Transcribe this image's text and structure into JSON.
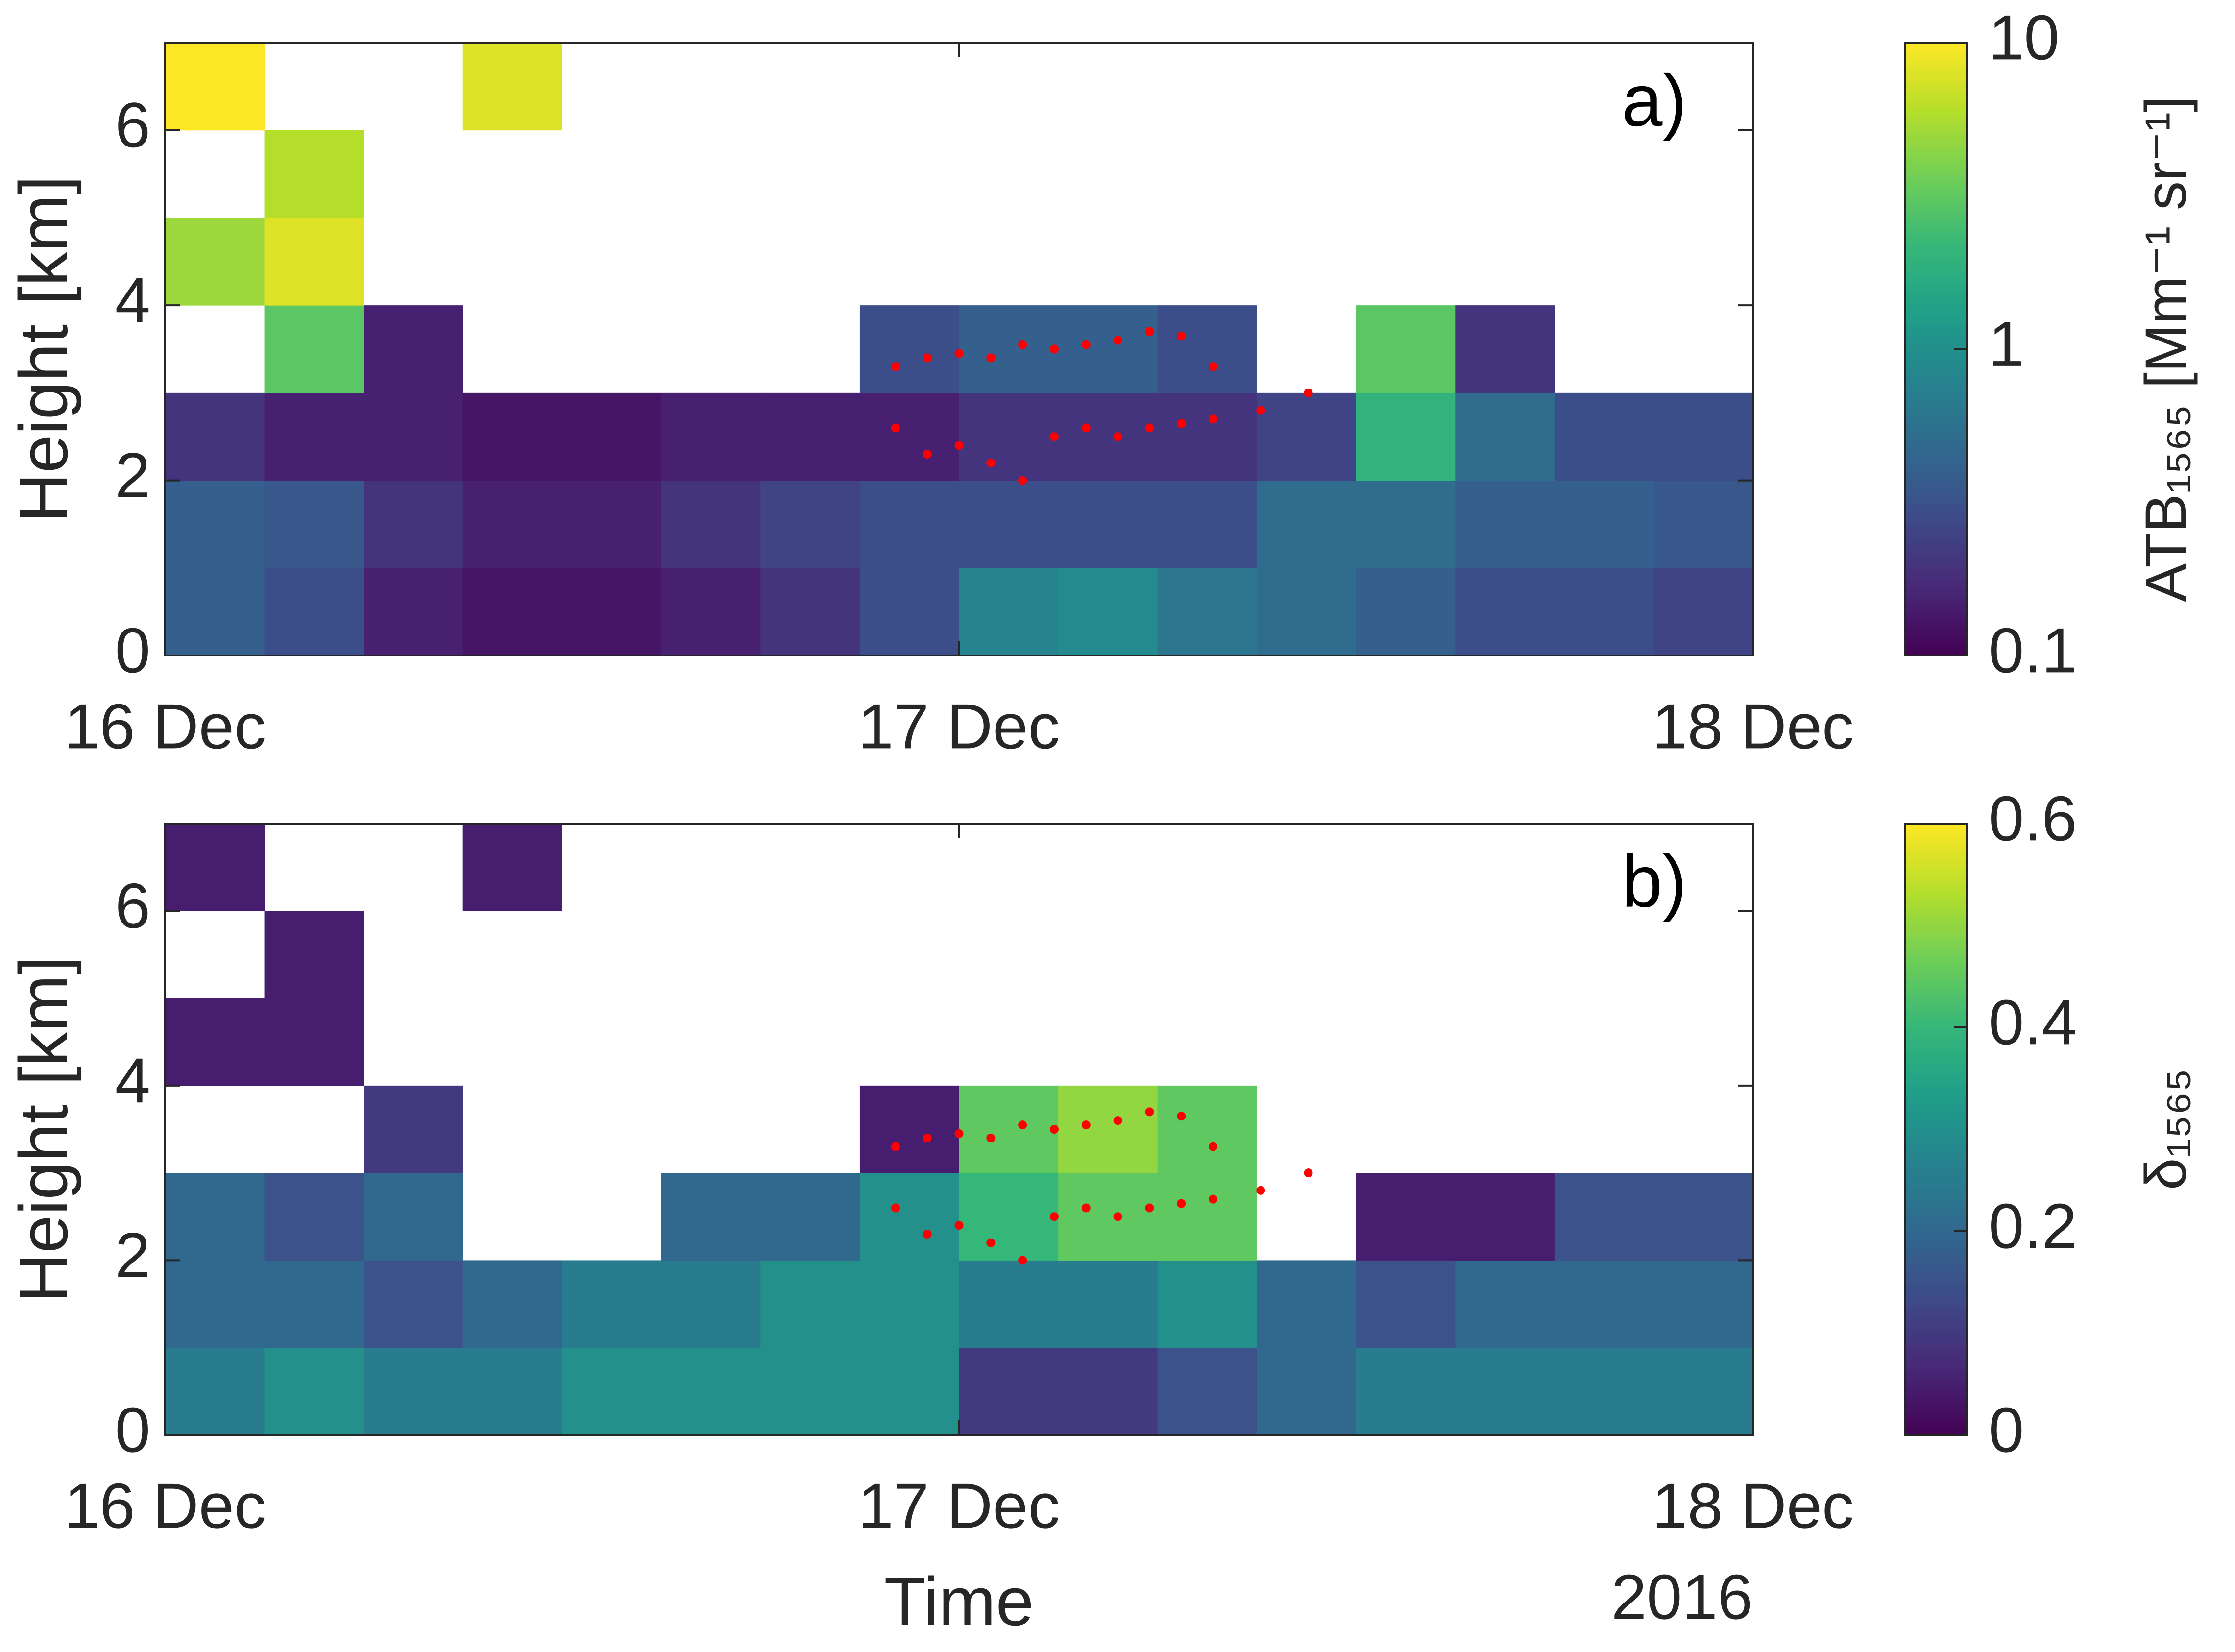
{
  "chart_data": [
    {
      "type": "heatmap",
      "panel_label": "a)",
      "ylabel": "Height [km]",
      "xlim": [
        0,
        2
      ],
      "xticks": [
        {
          "value": 0,
          "label": "16 Dec"
        },
        {
          "value": 1,
          "label": "17 Dec"
        },
        {
          "value": 2,
          "label": "18 Dec"
        }
      ],
      "ylim": [
        0,
        7
      ],
      "yticks": [
        0,
        2,
        4,
        6
      ],
      "z": [
        [
          0.4,
          0.3,
          0.15,
          0.13,
          0.13,
          0.15,
          0.2,
          0.3,
          0.8,
          0.9,
          0.6,
          0.5,
          0.4,
          0.3,
          0.3,
          0.25
        ],
        [
          0.4,
          0.35,
          0.2,
          0.15,
          0.15,
          0.2,
          0.25,
          0.3,
          0.3,
          0.3,
          0.3,
          0.5,
          0.5,
          0.4,
          0.4,
          0.35
        ],
        [
          0.2,
          0.15,
          0.15,
          0.13,
          0.13,
          0.15,
          0.15,
          0.15,
          0.2,
          0.2,
          0.2,
          0.25,
          2,
          0.5,
          0.3,
          0.3
        ],
        [
          null,
          3,
          0.15,
          null,
          null,
          null,
          null,
          0.3,
          0.4,
          0.4,
          0.3,
          null,
          3,
          0.2,
          null,
          null
        ],
        [
          5,
          8,
          null,
          null,
          null,
          null,
          null,
          null,
          null,
          null,
          null,
          null,
          null,
          null,
          null,
          null
        ],
        [
          null,
          6,
          null,
          null,
          null,
          null,
          null,
          null,
          null,
          null,
          null,
          null,
          null,
          null,
          null,
          null
        ],
        [
          10,
          null,
          null,
          8,
          null,
          null,
          null,
          null,
          null,
          null,
          null,
          null,
          null,
          null,
          null,
          null
        ]
      ],
      "colormap": "viridis",
      "color_log": true,
      "clim": [
        0.1,
        10
      ],
      "cticks": [
        0.1,
        1,
        10
      ],
      "colorbar_label": "ATB₁₅₆₅ [Mm⁻¹ sr⁻¹]",
      "overlay_color": "#ff0000",
      "overlay": [
        {
          "x": [
            0.92,
            0.96,
            1.0,
            1.04,
            1.08,
            1.12,
            1.16,
            1.2,
            1.24,
            1.28,
            1.32
          ],
          "y": [
            3.3,
            3.4,
            3.45,
            3.4,
            3.55,
            3.5,
            3.55,
            3.6,
            3.7,
            3.65,
            3.3
          ]
        },
        {
          "x": [
            0.92,
            0.96,
            1.0,
            1.04,
            1.08,
            1.12,
            1.16,
            1.2,
            1.24,
            1.28,
            1.32,
            1.38,
            1.44
          ],
          "y": [
            2.6,
            2.3,
            2.4,
            2.2,
            2.0,
            2.5,
            2.6,
            2.5,
            2.6,
            2.65,
            2.7,
            2.8,
            3.0
          ]
        }
      ]
    },
    {
      "type": "heatmap",
      "panel_label": "b)",
      "ylabel": "Height [km]",
      "xlabel": "Time",
      "x_year": "2016",
      "xlim": [
        0,
        2
      ],
      "xticks": [
        {
          "value": 0,
          "label": "16 Dec"
        },
        {
          "value": 1,
          "label": "17 Dec"
        },
        {
          "value": 2,
          "label": "18 Dec"
        }
      ],
      "ylim": [
        0,
        7
      ],
      "yticks": [
        0,
        2,
        4,
        6
      ],
      "z": [
        [
          0.25,
          0.3,
          0.25,
          0.25,
          0.3,
          0.3,
          0.3,
          0.3,
          0.1,
          0.1,
          0.15,
          0.2,
          0.25,
          0.25,
          0.25,
          0.25
        ],
        [
          0.2,
          0.2,
          0.15,
          0.2,
          0.25,
          0.25,
          0.3,
          0.3,
          0.25,
          0.25,
          0.3,
          0.2,
          0.15,
          0.2,
          0.2,
          0.2
        ],
        [
          0.2,
          0.15,
          0.2,
          null,
          null,
          0.2,
          0.2,
          0.3,
          0.4,
          0.45,
          0.45,
          null,
          0.05,
          0.05,
          0.15,
          0.15
        ],
        [
          null,
          null,
          0.1,
          null,
          null,
          null,
          null,
          0.05,
          0.45,
          0.5,
          0.45,
          null,
          null,
          null,
          null,
          null
        ],
        [
          0.05,
          0.05,
          null,
          null,
          null,
          null,
          null,
          null,
          null,
          null,
          null,
          null,
          null,
          null,
          null,
          null
        ],
        [
          null,
          0.05,
          null,
          null,
          null,
          null,
          null,
          null,
          null,
          null,
          null,
          null,
          null,
          null,
          null,
          null
        ],
        [
          0.05,
          null,
          null,
          0.05,
          null,
          null,
          null,
          null,
          null,
          null,
          null,
          null,
          null,
          null,
          null,
          null
        ]
      ],
      "colormap": "viridis",
      "color_log": false,
      "clim": [
        0,
        0.6
      ],
      "cticks": [
        0,
        0.2,
        0.4,
        0.6
      ],
      "colorbar_label": "δ₁₅₆₅",
      "overlay_color": "#ff0000",
      "overlay": [
        {
          "x": [
            0.92,
            0.96,
            1.0,
            1.04,
            1.08,
            1.12,
            1.16,
            1.2,
            1.24,
            1.28,
            1.32
          ],
          "y": [
            3.3,
            3.4,
            3.45,
            3.4,
            3.55,
            3.5,
            3.55,
            3.6,
            3.7,
            3.65,
            3.3
          ]
        },
        {
          "x": [
            0.92,
            0.96,
            1.0,
            1.04,
            1.08,
            1.12,
            1.16,
            1.2,
            1.24,
            1.28,
            1.32,
            1.38,
            1.44
          ],
          "y": [
            2.6,
            2.3,
            2.4,
            2.2,
            2.0,
            2.5,
            2.6,
            2.5,
            2.6,
            2.65,
            2.7,
            2.8,
            3.0
          ]
        }
      ]
    }
  ]
}
